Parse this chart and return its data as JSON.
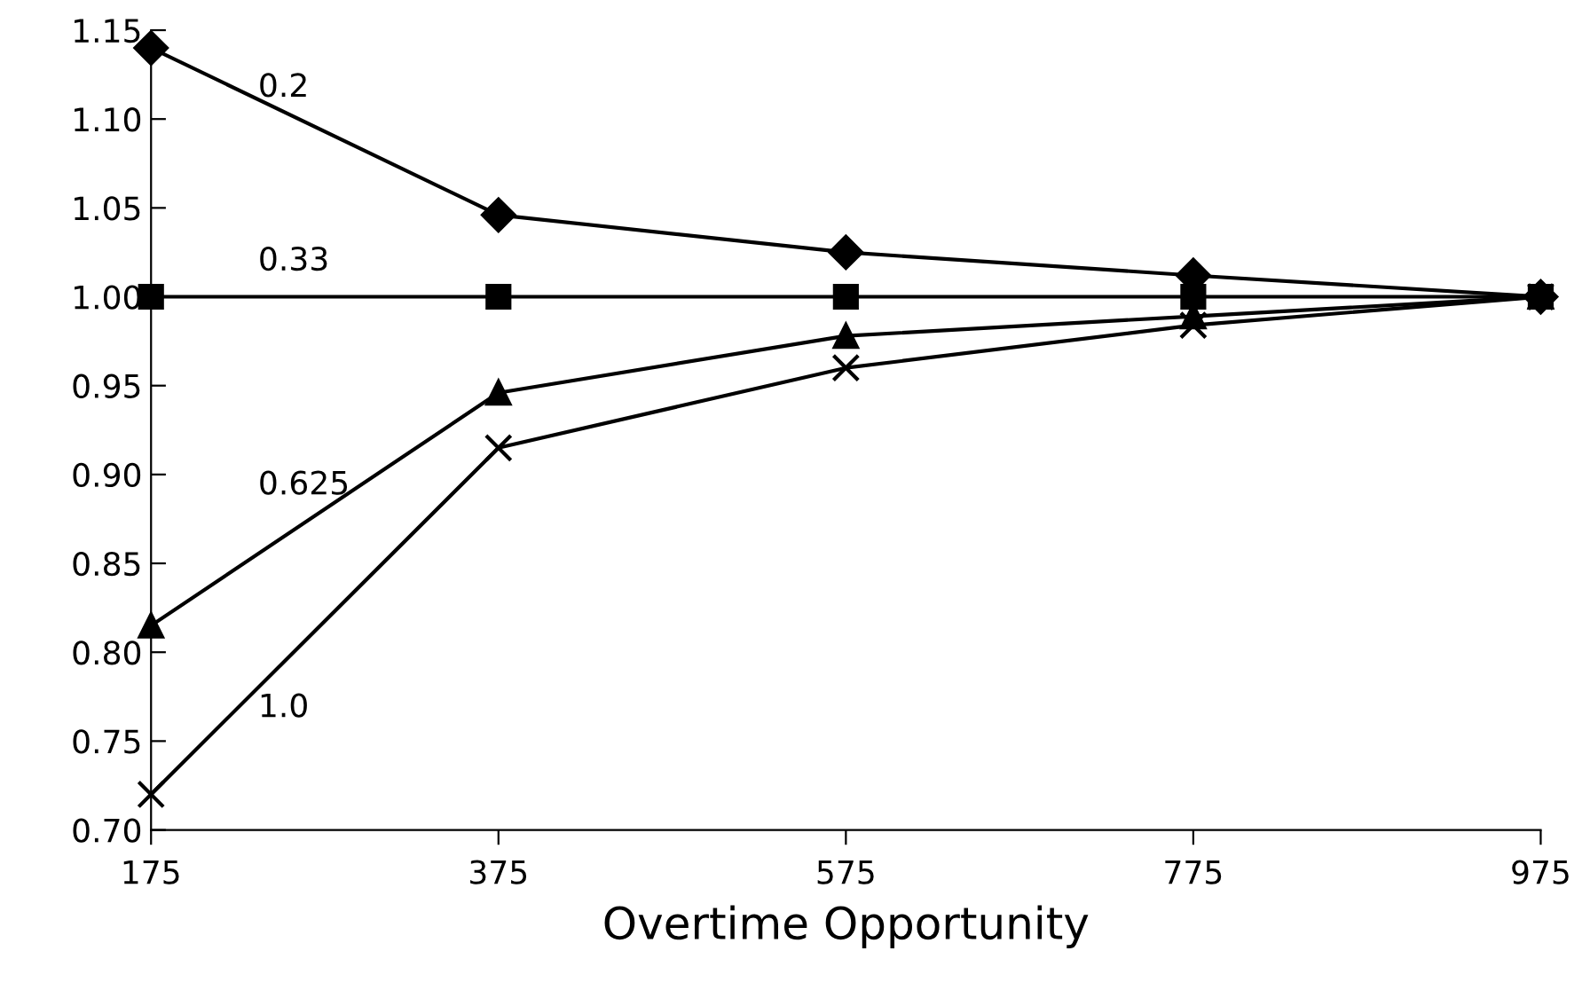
{
  "chart_data": {
    "type": "line",
    "xlabel": "Overtime Opportunity",
    "x": [
      175,
      375,
      575,
      775,
      975
    ],
    "series": [
      {
        "name": "0.2",
        "color": "#000000",
        "marker": "diamond",
        "values": [
          1.14,
          1.046,
          1.025,
          1.012,
          1.0
        ]
      },
      {
        "name": "0.33",
        "color": "#000000",
        "marker": "square",
        "values": [
          1.0,
          1.0,
          1.0,
          1.0,
          1.0
        ]
      },
      {
        "name": "0.625",
        "color": "#000000",
        "marker": "triangle",
        "values": [
          0.815,
          0.946,
          0.978,
          0.989,
          1.0
        ]
      },
      {
        "name": "1.0",
        "color": "#000000",
        "marker": "cross",
        "values": [
          0.72,
          0.915,
          0.96,
          0.984,
          1.0
        ]
      }
    ],
    "xlim": [
      175,
      975
    ],
    "xticks": [
      175,
      375,
      575,
      775,
      975
    ],
    "ylim": [
      0.7,
      1.15
    ],
    "yticks": [
      {
        "value": 0.7,
        "label": "0.70"
      },
      {
        "value": 0.75,
        "label": "0.75"
      },
      {
        "value": 0.8,
        "label": "0.80"
      },
      {
        "value": 0.85,
        "label": "0.85"
      },
      {
        "value": 0.9,
        "label": "0.90"
      },
      {
        "value": 0.95,
        "label": "0.95"
      },
      {
        "value": 1.0,
        "label": "1.00"
      },
      {
        "value": 1.05,
        "label": "1.05"
      },
      {
        "value": 1.1,
        "label": "1.10"
      },
      {
        "value": 1.15,
        "label": "1.15"
      }
    ],
    "grid": false,
    "legend": false,
    "line_style": "solid"
  }
}
